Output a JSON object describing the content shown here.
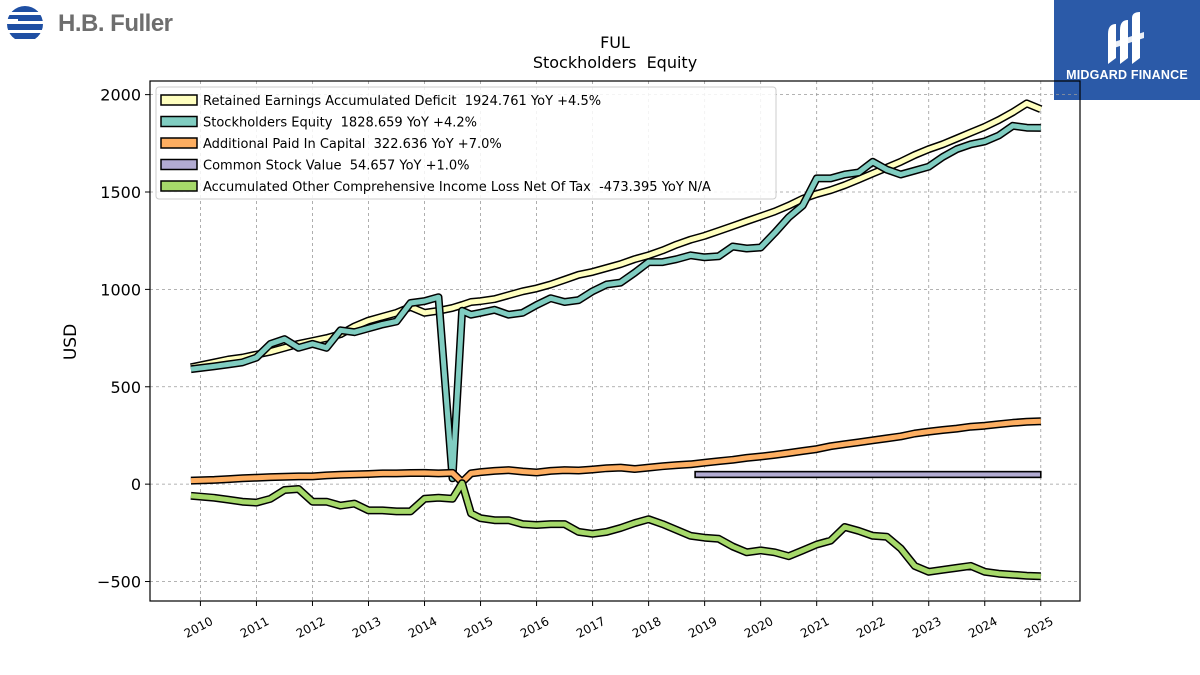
{
  "header": {
    "left_logo": {
      "text": "H.B. Fuller",
      "icon": "hb-fuller-stripes-icon"
    },
    "right_logo": {
      "text": "MIDGARD FINANCE",
      "icon": "midgard-mm-icon",
      "background": "#2b5aa8"
    }
  },
  "chart_data": {
    "type": "line",
    "title": "FUL",
    "subtitle": "Stockholders  Equity",
    "ylabel": "USD",
    "xlabel": "",
    "ylim": [
      -600,
      2070
    ],
    "xlim": [
      2009.1,
      2025.7
    ],
    "yticks": [
      -500,
      0,
      500,
      1000,
      1500,
      2000
    ],
    "ytick_labels": [
      "−500",
      "0",
      "500",
      "1000",
      "1500",
      "2000"
    ],
    "xticks": [
      2010,
      2011,
      2012,
      2013,
      2014,
      2015,
      2016,
      2017,
      2018,
      2019,
      2020,
      2021,
      2022,
      2023,
      2024,
      2025
    ],
    "grid": true,
    "legend_position": "upper-left",
    "series": [
      {
        "name": "Retained Earnings Accumulated Deficit  1924.761 YoY +4.5%",
        "color": "#ffffbf",
        "x": [
          2009.83,
          2010.25,
          2010.5,
          2010.75,
          2011.0,
          2011.25,
          2011.5,
          2011.75,
          2012.0,
          2012.25,
          2012.5,
          2012.75,
          2013.0,
          2013.25,
          2013.5,
          2013.75,
          2014.0,
          2014.25,
          2014.5,
          2014.67,
          2014.83,
          2015.0,
          2015.25,
          2015.5,
          2015.75,
          2016.0,
          2016.25,
          2016.5,
          2016.75,
          2017.0,
          2017.25,
          2017.5,
          2017.75,
          2018.0,
          2018.25,
          2018.5,
          2018.75,
          2019.0,
          2019.25,
          2019.5,
          2019.75,
          2020.0,
          2020.25,
          2020.5,
          2020.75,
          2021.0,
          2021.25,
          2021.5,
          2021.75,
          2022.0,
          2022.25,
          2022.5,
          2022.75,
          2023.0,
          2023.25,
          2023.5,
          2023.75,
          2024.0,
          2024.25,
          2024.5,
          2024.75,
          2025.0
        ],
        "values": [
          600,
          625,
          640,
          650,
          665,
          680,
          700,
          720,
          735,
          750,
          770,
          810,
          840,
          860,
          880,
          910,
          880,
          890,
          905,
          920,
          935,
          940,
          950,
          970,
          990,
          1005,
          1025,
          1050,
          1075,
          1090,
          1110,
          1130,
          1155,
          1175,
          1200,
          1230,
          1255,
          1275,
          1300,
          1325,
          1350,
          1375,
          1400,
          1430,
          1465,
          1490,
          1510,
          1535,
          1565,
          1595,
          1625,
          1655,
          1690,
          1720,
          1745,
          1775,
          1805,
          1835,
          1870,
          1910,
          1955,
          1925
        ]
      },
      {
        "name": "Stockholders Equity  1828.659 YoY +4.2%",
        "color": "#80cdc1",
        "x": [
          2009.83,
          2010.25,
          2010.5,
          2010.75,
          2011.0,
          2011.25,
          2011.5,
          2011.75,
          2012.0,
          2012.25,
          2012.5,
          2012.75,
          2013.0,
          2013.25,
          2013.5,
          2013.75,
          2014.0,
          2014.25,
          2014.5,
          2014.67,
          2014.83,
          2015.0,
          2015.25,
          2015.5,
          2015.75,
          2016.0,
          2016.25,
          2016.5,
          2016.75,
          2017.0,
          2017.25,
          2017.5,
          2017.75,
          2018.0,
          2018.25,
          2018.5,
          2018.75,
          2019.0,
          2019.25,
          2019.5,
          2019.75,
          2020.0,
          2020.25,
          2020.5,
          2020.75,
          2021.0,
          2021.25,
          2021.5,
          2021.75,
          2022.0,
          2022.25,
          2022.5,
          2022.75,
          2023.0,
          2023.25,
          2023.5,
          2023.75,
          2024.0,
          2024.25,
          2024.5,
          2024.75,
          2025.0
        ],
        "values": [
          590,
          605,
          615,
          625,
          650,
          720,
          745,
          700,
          720,
          700,
          790,
          780,
          800,
          820,
          835,
          930,
          940,
          960,
          30,
          890,
          870,
          880,
          895,
          870,
          880,
          920,
          955,
          935,
          945,
          990,
          1025,
          1035,
          1085,
          1140,
          1140,
          1155,
          1175,
          1165,
          1170,
          1220,
          1210,
          1215,
          1290,
          1370,
          1430,
          1570,
          1570,
          1590,
          1600,
          1655,
          1615,
          1590,
          1610,
          1630,
          1680,
          1720,
          1745,
          1760,
          1790,
          1840,
          1830,
          1829
        ]
      },
      {
        "name": "Additional Paid In Capital  322.636 YoY +7.0%",
        "color": "#fdae61",
        "x": [
          2009.83,
          2010.25,
          2010.5,
          2010.75,
          2011.0,
          2011.25,
          2011.5,
          2011.75,
          2012.0,
          2012.25,
          2012.5,
          2012.75,
          2013.0,
          2013.25,
          2013.5,
          2013.75,
          2014.0,
          2014.25,
          2014.5,
          2014.67,
          2014.83,
          2015.0,
          2015.25,
          2015.5,
          2015.75,
          2016.0,
          2016.25,
          2016.5,
          2016.75,
          2017.0,
          2017.25,
          2017.5,
          2017.75,
          2018.0,
          2018.25,
          2018.5,
          2018.75,
          2019.0,
          2019.25,
          2019.5,
          2019.75,
          2020.0,
          2020.25,
          2020.5,
          2020.75,
          2021.0,
          2021.25,
          2021.5,
          2021.75,
          2022.0,
          2022.25,
          2022.5,
          2022.75,
          2023.0,
          2023.25,
          2023.5,
          2023.75,
          2024.0,
          2024.25,
          2024.5,
          2024.75,
          2025.0
        ],
        "values": [
          18,
          22,
          26,
          30,
          33,
          36,
          38,
          40,
          40,
          45,
          48,
          50,
          52,
          55,
          55,
          57,
          58,
          55,
          58,
          10,
          55,
          62,
          68,
          72,
          65,
          60,
          68,
          72,
          70,
          75,
          82,
          85,
          78,
          85,
          92,
          98,
          102,
          110,
          118,
          125,
          135,
          142,
          150,
          160,
          170,
          180,
          195,
          205,
          215,
          225,
          235,
          245,
          260,
          270,
          278,
          285,
          295,
          300,
          308,
          315,
          320,
          323
        ]
      },
      {
        "name": "Common Stock Value  54.657 YoY +1.0%",
        "color": "#b2abd2",
        "x": [
          2018.83,
          2025.0
        ],
        "values": [
          54,
          55
        ],
        "bar_base": [
          45,
          45
        ]
      },
      {
        "name": "Accumulated Other Comprehensive Income Loss Net Of Tax  -473.395 YoY N/A",
        "color": "#a6d96a",
        "x": [
          2009.83,
          2010.25,
          2010.5,
          2010.75,
          2011.0,
          2011.25,
          2011.5,
          2011.75,
          2012.0,
          2012.25,
          2012.5,
          2012.75,
          2013.0,
          2013.25,
          2013.5,
          2013.75,
          2014.0,
          2014.25,
          2014.5,
          2014.67,
          2014.83,
          2015.0,
          2015.25,
          2015.5,
          2015.75,
          2016.0,
          2016.25,
          2016.5,
          2016.75,
          2017.0,
          2017.25,
          2017.5,
          2017.75,
          2018.0,
          2018.25,
          2018.5,
          2018.75,
          2019.0,
          2019.25,
          2019.5,
          2019.75,
          2020.0,
          2020.25,
          2020.5,
          2020.75,
          2021.0,
          2021.25,
          2021.5,
          2021.75,
          2022.0,
          2022.25,
          2022.5,
          2022.75,
          2023.0,
          2023.25,
          2023.5,
          2023.75,
          2024.0,
          2024.25,
          2024.5,
          2024.75,
          2025.0
        ],
        "values": [
          -60,
          -70,
          -80,
          -90,
          -95,
          -75,
          -30,
          -25,
          -90,
          -90,
          -110,
          -100,
          -135,
          -135,
          -140,
          -140,
          -75,
          -70,
          -75,
          5,
          -150,
          -175,
          -185,
          -185,
          -205,
          -210,
          -205,
          -205,
          -245,
          -255,
          -245,
          -225,
          -200,
          -180,
          -205,
          -235,
          -265,
          -275,
          -280,
          -320,
          -350,
          -340,
          -350,
          -370,
          -340,
          -310,
          -290,
          -220,
          -240,
          -265,
          -270,
          -330,
          -420,
          -450,
          -440,
          -430,
          -420,
          -450,
          -460,
          -465,
          -470,
          -473
        ]
      }
    ]
  }
}
